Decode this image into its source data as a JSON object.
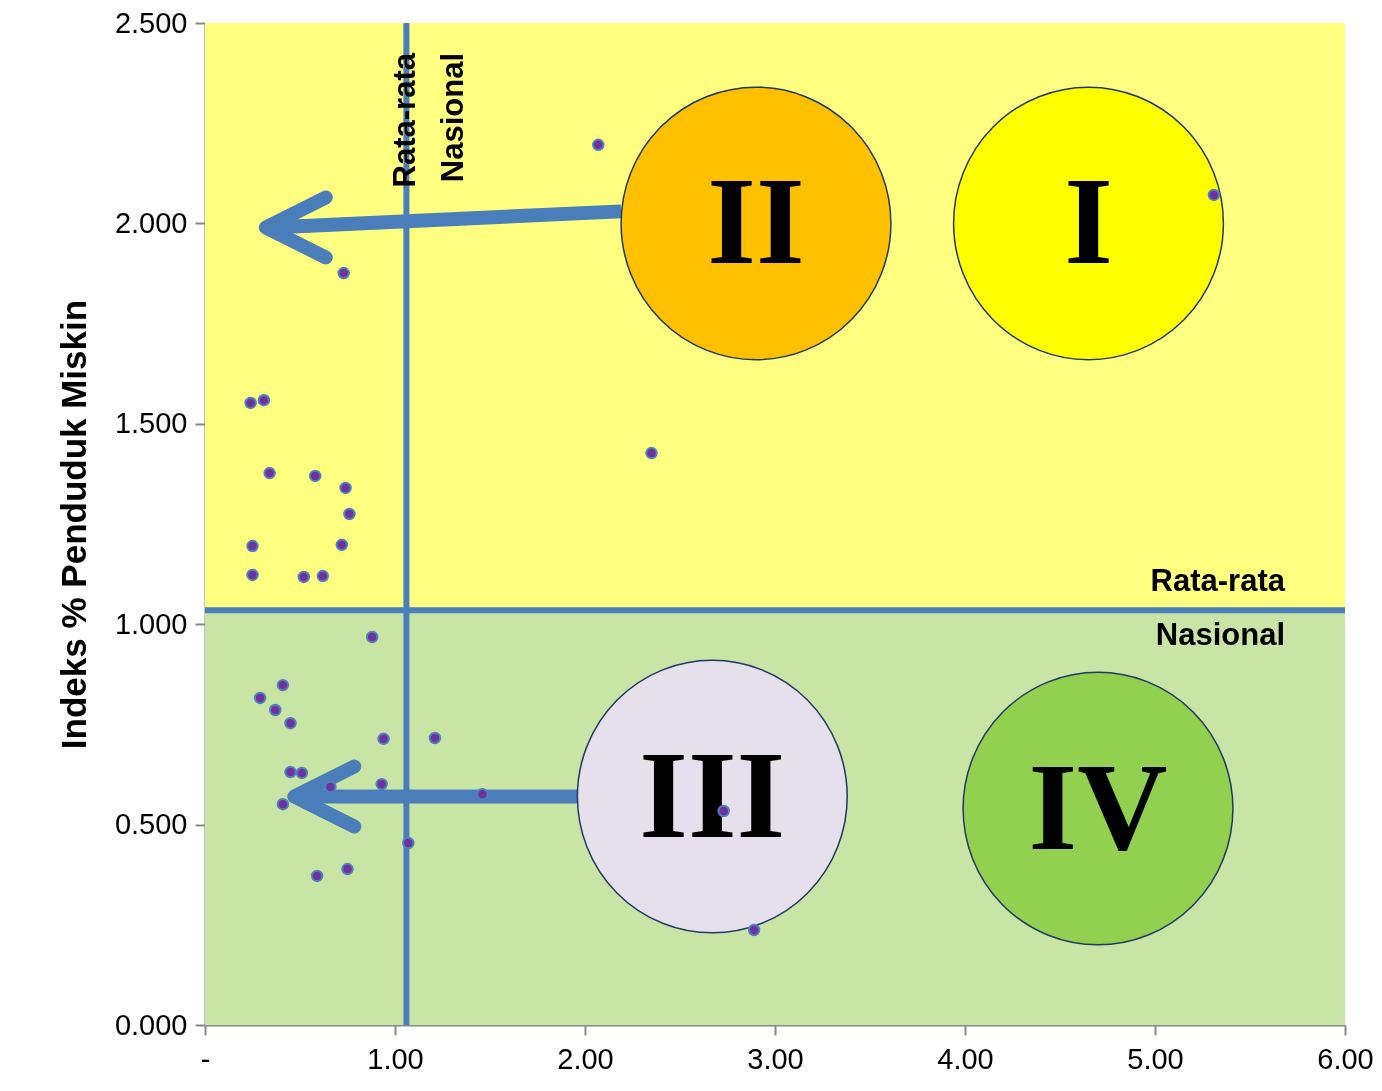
{
  "chart_data": {
    "type": "scatter",
    "ylabel": "Indeks % Penduduk Miskin",
    "xlim": [
      0,
      6
    ],
    "ylim": [
      0,
      2.5
    ],
    "xticks": [
      {
        "value": 0,
        "label": "-"
      },
      {
        "value": 1,
        "label": "1.00"
      },
      {
        "value": 2,
        "label": "2.00"
      },
      {
        "value": 3,
        "label": "3.00"
      },
      {
        "value": 4,
        "label": "4.00"
      },
      {
        "value": 5,
        "label": "5.00"
      },
      {
        "value": 6,
        "label": "6.00"
      }
    ],
    "yticks": [
      {
        "value": 0,
        "label": "0.000"
      },
      {
        "value": 0.5,
        "label": "0.500"
      },
      {
        "value": 1,
        "label": "1.000"
      },
      {
        "value": 1.5,
        "label": "1.500"
      },
      {
        "value": 2,
        "label": "2.000"
      },
      {
        "value": 2.5,
        "label": "2.500"
      }
    ],
    "grid": false,
    "marker": "circle",
    "series": [
      {
        "color": "#7030a0",
        "x": [
          0.24,
          0.31,
          0.34,
          0.58,
          0.74,
          0.76,
          0.25,
          0.72,
          0.25,
          0.52,
          0.62,
          0.73,
          2.07,
          2.35,
          5.31,
          0.88,
          0.41,
          0.29,
          0.37,
          0.45,
          0.94,
          1.21,
          0.45,
          0.51,
          0.66,
          0.93,
          0.41,
          1.46,
          1.07,
          2.73,
          0.59,
          0.75,
          2.89
        ],
        "values": [
          1.552,
          1.559,
          1.377,
          1.37,
          1.34,
          1.275,
          1.195,
          1.198,
          1.123,
          1.118,
          1.12,
          1.876,
          2.196,
          1.427,
          2.071,
          0.968,
          0.848,
          0.816,
          0.786,
          0.753,
          0.714,
          0.716,
          0.631,
          0.629,
          0.594,
          0.601,
          0.551,
          0.576,
          0.454,
          0.534,
          0.372,
          0.389,
          0.237
        ]
      }
    ],
    "ref_lines": [
      {
        "axis": "x",
        "value": 1.06,
        "label": "Rata-rata Nasional",
        "color": "#4a7ebb"
      },
      {
        "axis": "y",
        "value": 1.035,
        "label": "Rata-rata Nasional",
        "color": "#4a7ebb"
      }
    ],
    "bands": [
      {
        "axis": "y",
        "from": 1.035,
        "to": 2.5,
        "color": "#ffff80"
      },
      {
        "axis": "y",
        "from": 0,
        "to": 1.035,
        "color": "#c9e5a6"
      }
    ],
    "annotations": [
      "I",
      "II",
      "III",
      "IV"
    ]
  }
}
